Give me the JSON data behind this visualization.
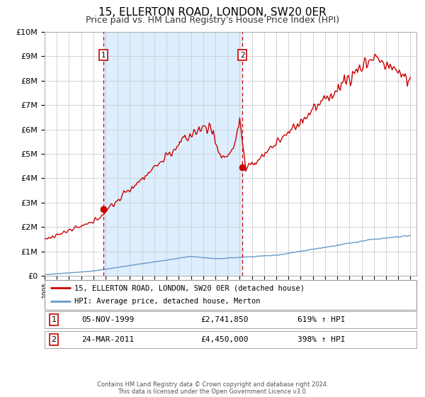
{
  "title": "15, ELLERTON ROAD, LONDON, SW20 0ER",
  "subtitle": "Price paid vs. HM Land Registry's House Price Index (HPI)",
  "ylim": [
    0,
    10000000
  ],
  "yticks": [
    0,
    1000000,
    2000000,
    3000000,
    4000000,
    5000000,
    6000000,
    7000000,
    8000000,
    9000000,
    10000000
  ],
  "ytick_labels": [
    "£0",
    "£1M",
    "£2M",
    "£3M",
    "£4M",
    "£5M",
    "£6M",
    "£7M",
    "£8M",
    "£9M",
    "£10M"
  ],
  "xlim_start": 1995.0,
  "xlim_end": 2025.5,
  "background_color": "#ffffff",
  "plot_bg_color": "#ffffff",
  "grid_color": "#cccccc",
  "shade_color": "#ddeeff",
  "title_fontsize": 11,
  "subtitle_fontsize": 9,
  "legend_label_red": "15, ELLERTON ROAD, LONDON, SW20 0ER (detached house)",
  "legend_label_blue": "HPI: Average price, detached house, Merton",
  "sale1_x": 1999.846,
  "sale1_y": 2741850,
  "sale1_label": "1",
  "sale1_date": "05-NOV-1999",
  "sale1_price": "£2,741,850",
  "sale1_hpi": "619% ↑ HPI",
  "sale2_x": 2011.23,
  "sale2_y": 4450000,
  "sale2_label": "2",
  "sale2_date": "24-MAR-2011",
  "sale2_price": "£4,450,000",
  "sale2_hpi": "398% ↑ HPI",
  "footer1": "Contains HM Land Registry data © Crown copyright and database right 2024.",
  "footer2": "This data is licensed under the Open Government Licence v3.0.",
  "red_color": "#cc0000",
  "blue_color": "#6699cc"
}
